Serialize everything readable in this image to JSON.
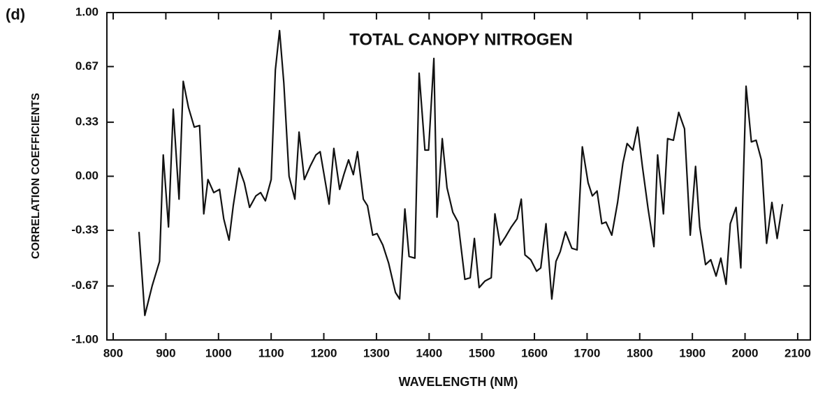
{
  "panel_label": "(d)",
  "chart_data": {
    "type": "line",
    "title": "TOTAL CANOPY NITROGEN",
    "x_label": "WAVELENGTH (NM)",
    "y_label": "CORRELATION COEFFICIENTS",
    "xlim": [
      788,
      2124
    ],
    "ylim": [
      -1,
      1
    ],
    "xticks": [
      800,
      900,
      1000,
      1100,
      1200,
      1300,
      1400,
      1500,
      1600,
      1700,
      1800,
      1900,
      2000,
      2100
    ],
    "yticks": [
      {
        "value": 1,
        "label": "1.00"
      },
      0.67,
      0.33,
      {
        "value": 0,
        "label": "0.00"
      },
      -0.33,
      -0.67,
      {
        "value": -1,
        "label": "-1.00"
      }
    ],
    "grid": false,
    "series": [
      {
        "color": "#111111",
        "x": [
          849,
          860,
          874,
          888,
          895,
          905,
          914,
          925,
          933,
          943,
          954,
          964,
          972,
          980,
          991,
          1002,
          1010,
          1020,
          1028,
          1039,
          1049,
          1059,
          1071,
          1080,
          1089,
          1100,
          1108,
          1116,
          1124,
          1134,
          1145,
          1153,
          1163,
          1174,
          1185,
          1193,
          1201,
          1210,
          1219,
          1230,
          1238,
          1247,
          1256,
          1264,
          1275,
          1283,
          1293,
          1301,
          1312,
          1323,
          1336,
          1344,
          1354,
          1362,
          1373,
          1381,
          1392,
          1399,
          1409,
          1415,
          1425,
          1434,
          1445,
          1455,
          1468,
          1478,
          1486,
          1495,
          1506,
          1518,
          1525,
          1535,
          1545,
          1556,
          1567,
          1575,
          1582,
          1593,
          1604,
          1612,
          1622,
          1633,
          1641,
          1649,
          1659,
          1671,
          1681,
          1691,
          1702,
          1710,
          1719,
          1728,
          1736,
          1747,
          1758,
          1768,
          1776,
          1787,
          1796,
          1805,
          1816,
          1827,
          1834,
          1845,
          1853,
          1864,
          1874,
          1885,
          1896,
          1906,
          1914,
          1925,
          1935,
          1945,
          1954,
          1964,
          1972,
          1983,
          1992,
          2002,
          2012,
          2021,
          2031,
          2041,
          2051,
          2061,
          2071
        ],
        "values": [
          -0.34,
          -0.85,
          -0.67,
          -0.52,
          0.13,
          -0.31,
          0.41,
          -0.14,
          0.58,
          0.42,
          0.3,
          0.31,
          -0.23,
          -0.02,
          -0.1,
          -0.08,
          -0.26,
          -0.39,
          -0.18,
          0.05,
          -0.04,
          -0.19,
          -0.12,
          -0.1,
          -0.15,
          -0.02,
          0.65,
          0.89,
          0.57,
          0.0,
          -0.14,
          0.27,
          -0.02,
          0.06,
          0.13,
          0.15,
          0.0,
          -0.17,
          0.17,
          -0.08,
          0.01,
          0.1,
          0.01,
          0.15,
          -0.14,
          -0.18,
          -0.36,
          -0.35,
          -0.42,
          -0.53,
          -0.71,
          -0.75,
          -0.2,
          -0.49,
          -0.5,
          0.63,
          0.16,
          0.16,
          0.72,
          -0.25,
          0.23,
          -0.07,
          -0.22,
          -0.28,
          -0.63,
          -0.62,
          -0.38,
          -0.68,
          -0.64,
          -0.62,
          -0.23,
          -0.42,
          -0.37,
          -0.31,
          -0.26,
          -0.14,
          -0.48,
          -0.51,
          -0.58,
          -0.56,
          -0.29,
          -0.75,
          -0.52,
          -0.46,
          -0.34,
          -0.44,
          -0.45,
          0.18,
          -0.04,
          -0.12,
          -0.09,
          -0.29,
          -0.28,
          -0.36,
          -0.16,
          0.08,
          0.2,
          0.16,
          0.3,
          0.06,
          -0.2,
          -0.43,
          0.13,
          -0.23,
          0.23,
          0.22,
          0.39,
          0.29,
          -0.36,
          0.06,
          -0.31,
          -0.54,
          -0.51,
          -0.61,
          -0.5,
          -0.66,
          -0.29,
          -0.19,
          -0.56,
          0.55,
          0.21,
          0.22,
          0.1,
          -0.41,
          -0.16,
          -0.38,
          -0.17
        ]
      }
    ]
  }
}
